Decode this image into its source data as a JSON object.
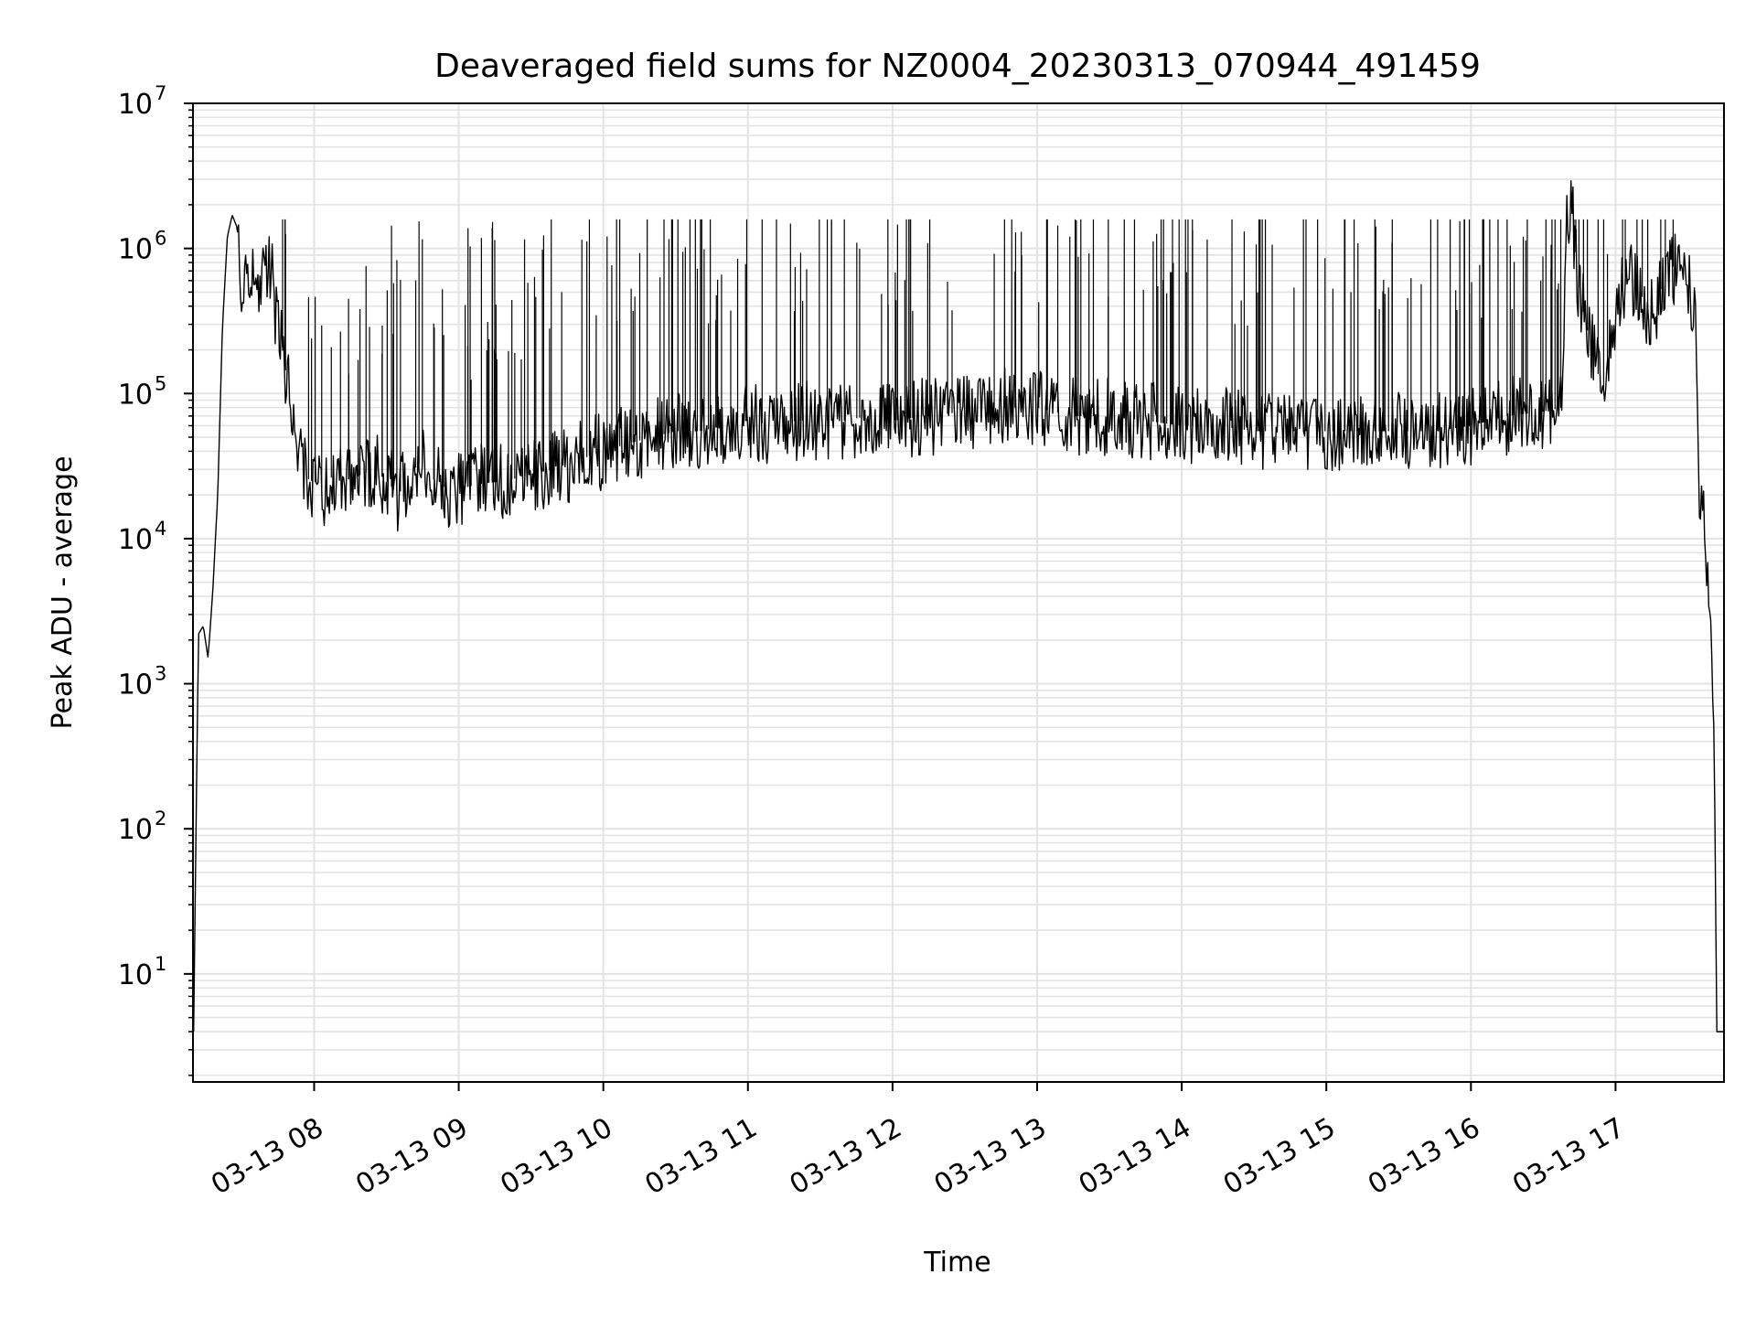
{
  "chart_data": {
    "type": "line",
    "title": "Deaveraged field sums for NZ0004_20230313_070944_491459",
    "xlabel": "Time",
    "ylabel": "Peak ADU - average",
    "yscale": "log",
    "ylim": [
      1.8,
      10000000
    ],
    "xlim": [
      "2023-03-13 07:09:44",
      "2023-03-13 17:45:00"
    ],
    "grid": true,
    "legend": "none",
    "colors": {
      "line": "#000000",
      "grid": "#e3e3e3",
      "background": "#ffffff"
    },
    "x_ticks": [
      {
        "value": "2023-03-13 08:00",
        "label": "03-13 08"
      },
      {
        "value": "2023-03-13 09:00",
        "label": "03-13 09"
      },
      {
        "value": "2023-03-13 10:00",
        "label": "03-13 10"
      },
      {
        "value": "2023-03-13 11:00",
        "label": "03-13 11"
      },
      {
        "value": "2023-03-13 12:00",
        "label": "03-13 12"
      },
      {
        "value": "2023-03-13 13:00",
        "label": "03-13 13"
      },
      {
        "value": "2023-03-13 14:00",
        "label": "03-13 14"
      },
      {
        "value": "2023-03-13 15:00",
        "label": "03-13 15"
      },
      {
        "value": "2023-03-13 16:00",
        "label": "03-13 16"
      },
      {
        "value": "2023-03-13 17:00",
        "label": "03-13 17"
      }
    ],
    "y_ticks": [
      {
        "value": 10,
        "base": "10",
        "exp": "1"
      },
      {
        "value": 100,
        "base": "10",
        "exp": "2"
      },
      {
        "value": 1000,
        "base": "10",
        "exp": "3"
      },
      {
        "value": 10000,
        "base": "10",
        "exp": "4"
      },
      {
        "value": 100000,
        "base": "10",
        "exp": "5"
      },
      {
        "value": 1000000,
        "base": "10",
        "exp": "6"
      },
      {
        "value": 10000000,
        "base": "10",
        "exp": "7"
      }
    ],
    "series": [
      {
        "x": [
          "07:10",
          "07:12",
          "07:14",
          "07:16",
          "07:18",
          "07:20",
          "07:22",
          "07:24",
          "07:26",
          "07:28",
          "07:30",
          "07:32",
          "07:34",
          "07:36",
          "07:38",
          "07:40",
          "07:42",
          "07:44",
          "07:46",
          "07:48",
          "07:50",
          "07:52",
          "07:54",
          "07:56",
          "07:58",
          "08:00",
          "08:03",
          "08:06",
          "08:10",
          "08:15",
          "08:20",
          "08:25",
          "08:30",
          "08:35",
          "08:40",
          "08:45",
          "08:50",
          "08:55",
          "09:00",
          "09:10",
          "09:20",
          "09:30",
          "09:40",
          "09:50",
          "10:00",
          "10:10",
          "10:20",
          "10:30",
          "10:40",
          "10:50",
          "11:00",
          "11:10",
          "11:20",
          "11:30",
          "11:40",
          "11:50",
          "12:00",
          "12:15",
          "12:30",
          "12:45",
          "13:00",
          "13:15",
          "13:30",
          "13:45",
          "14:00",
          "14:15",
          "14:30",
          "14:45",
          "15:00",
          "15:15",
          "15:30",
          "15:45",
          "16:00",
          "16:15",
          "16:30",
          "16:38",
          "16:40",
          "16:42",
          "16:45",
          "16:50",
          "16:55",
          "17:00",
          "17:05",
          "17:10",
          "17:15",
          "17:20",
          "17:25",
          "17:30",
          "17:33",
          "17:35",
          "17:37",
          "17:39",
          "17:41",
          "17:42",
          "17:43",
          "17:44",
          "17:45"
        ],
        "y": [
          4,
          2200,
          2500,
          1500,
          4500,
          20000,
          300000,
          1200000,
          1700000,
          1400000,
          400000,
          600000,
          700000,
          650000,
          600000,
          750000,
          700000,
          400000,
          250000,
          150000,
          90000,
          50000,
          35000,
          30000,
          25000,
          25000,
          22000,
          25000,
          30000,
          25000,
          28000,
          30000,
          25000,
          20000,
          28000,
          35000,
          25000,
          22000,
          22000,
          24000,
          25000,
          28000,
          30000,
          35000,
          40000,
          45000,
          50000,
          55000,
          55000,
          60000,
          65000,
          60000,
          65000,
          65000,
          65000,
          70000,
          65000,
          70000,
          75000,
          80000,
          80000,
          70000,
          70000,
          65000,
          60000,
          60000,
          55000,
          55000,
          55000,
          55000,
          55000,
          55000,
          60000,
          70000,
          75000,
          80000,
          2000000,
          1800000,
          500000,
          200000,
          100000,
          400000,
          600000,
          500000,
          350000,
          600000,
          800000,
          600000,
          300000,
          20000,
          10000,
          3000,
          300,
          4,
          4,
          4,
          4
        ]
      }
    ]
  }
}
